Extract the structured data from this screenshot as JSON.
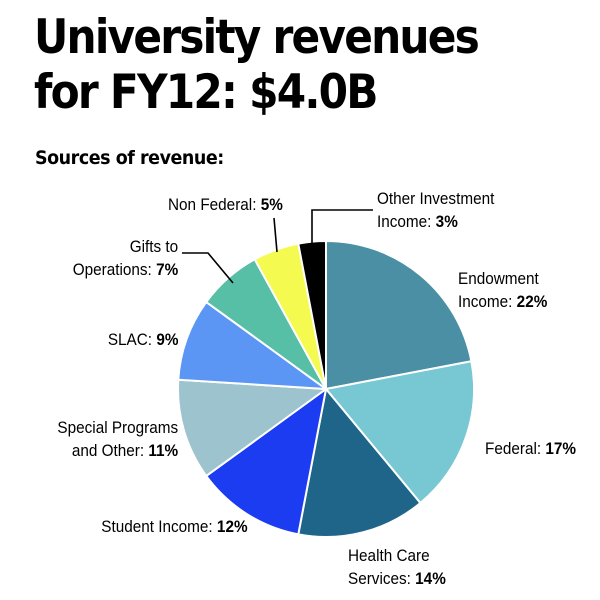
{
  "title": "University revenues for FY12: $4.0B",
  "subtitle": "Sources of revenue:",
  "colors": {
    "endowment": "#4a8fa3",
    "federal": "#78c8d4",
    "health_care": "#1f658a",
    "student_income": "#1c3cf2",
    "special_programs": "#9cc3ce",
    "slac": "#5c96f5",
    "gifts": "#57bfa6",
    "non_federal": "#f4fa50",
    "other_investment": "#000000"
  },
  "chart_data": {
    "type": "pie",
    "title": "University revenues for FY12: $4.0B",
    "subtitle": "Sources of revenue:",
    "slices": [
      {
        "label": "Endowment Income",
        "value": 22,
        "value_label": "22%",
        "lines": [
          "Endowment",
          "Income: "
        ],
        "color": "#4a8fa3"
      },
      {
        "label": "Federal",
        "value": 17,
        "value_label": "17%",
        "lines": [
          "Federal: "
        ],
        "color": "#78c8d4"
      },
      {
        "label": "Health Care Services",
        "value": 14,
        "value_label": "14%",
        "lines": [
          "Health Care",
          "Services: "
        ],
        "color": "#1f658a"
      },
      {
        "label": "Student Income",
        "value": 12,
        "value_label": "12%",
        "lines": [
          "Student Income: "
        ],
        "color": "#1c3cf2"
      },
      {
        "label": "Special Programs and Other",
        "value": 11,
        "value_label": "11%",
        "lines": [
          "Special Programs",
          "and Other: "
        ],
        "color": "#9cc3ce"
      },
      {
        "label": "SLAC",
        "value": 9,
        "value_label": "9%",
        "lines": [
          "SLAC: "
        ],
        "color": "#5c96f5"
      },
      {
        "label": "Gifts to Operations",
        "value": 7,
        "value_label": "7%",
        "lines": [
          "Gifts to",
          "Operations: "
        ],
        "color": "#57bfa6"
      },
      {
        "label": "Non Federal",
        "value": 5,
        "value_label": "5%",
        "lines": [
          "Non Federal: "
        ],
        "color": "#f4fa50"
      },
      {
        "label": "Other Investment Income",
        "value": 3,
        "value_label": "3%",
        "lines": [
          "Other Investment",
          "Income: "
        ],
        "color": "#000000"
      }
    ]
  }
}
